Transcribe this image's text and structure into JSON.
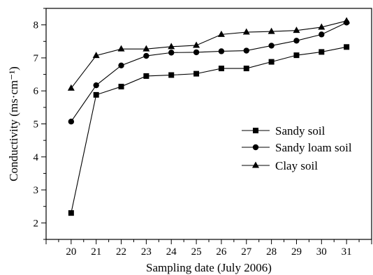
{
  "chart_data": {
    "type": "line",
    "x": [
      20,
      21,
      22,
      23,
      24,
      25,
      26,
      27,
      28,
      29,
      30,
      31
    ],
    "xlabel": "Sampling date (July 2006)",
    "ylabel": "Conductivity (ms·cm⁻¹)",
    "xlim": [
      19,
      32
    ],
    "ylim": [
      1.5,
      8.5
    ],
    "xticks": [
      "20",
      "21",
      "22",
      "23",
      "24",
      "25",
      "26",
      "27",
      "28",
      "29",
      "30",
      "31"
    ],
    "yticks": [
      "2",
      "3",
      "4",
      "5",
      "6",
      "7",
      "8"
    ],
    "legend_position": "center-right",
    "grid": false,
    "series": [
      {
        "name": "Sandy soil",
        "marker": "square",
        "values": [
          2.3,
          5.88,
          6.13,
          6.45,
          6.48,
          6.52,
          6.68,
          6.68,
          6.88,
          7.08,
          7.18,
          7.33
        ]
      },
      {
        "name": "Sandy loam soil",
        "marker": "circle",
        "values": [
          5.07,
          6.17,
          6.77,
          7.06,
          7.16,
          7.17,
          7.2,
          7.22,
          7.37,
          7.52,
          7.71,
          8.07
        ]
      },
      {
        "name": "Clay soil",
        "marker": "triangle",
        "values": [
          6.08,
          7.07,
          7.27,
          7.27,
          7.34,
          7.38,
          7.71,
          7.78,
          7.8,
          7.83,
          7.93,
          8.12
        ]
      }
    ]
  }
}
